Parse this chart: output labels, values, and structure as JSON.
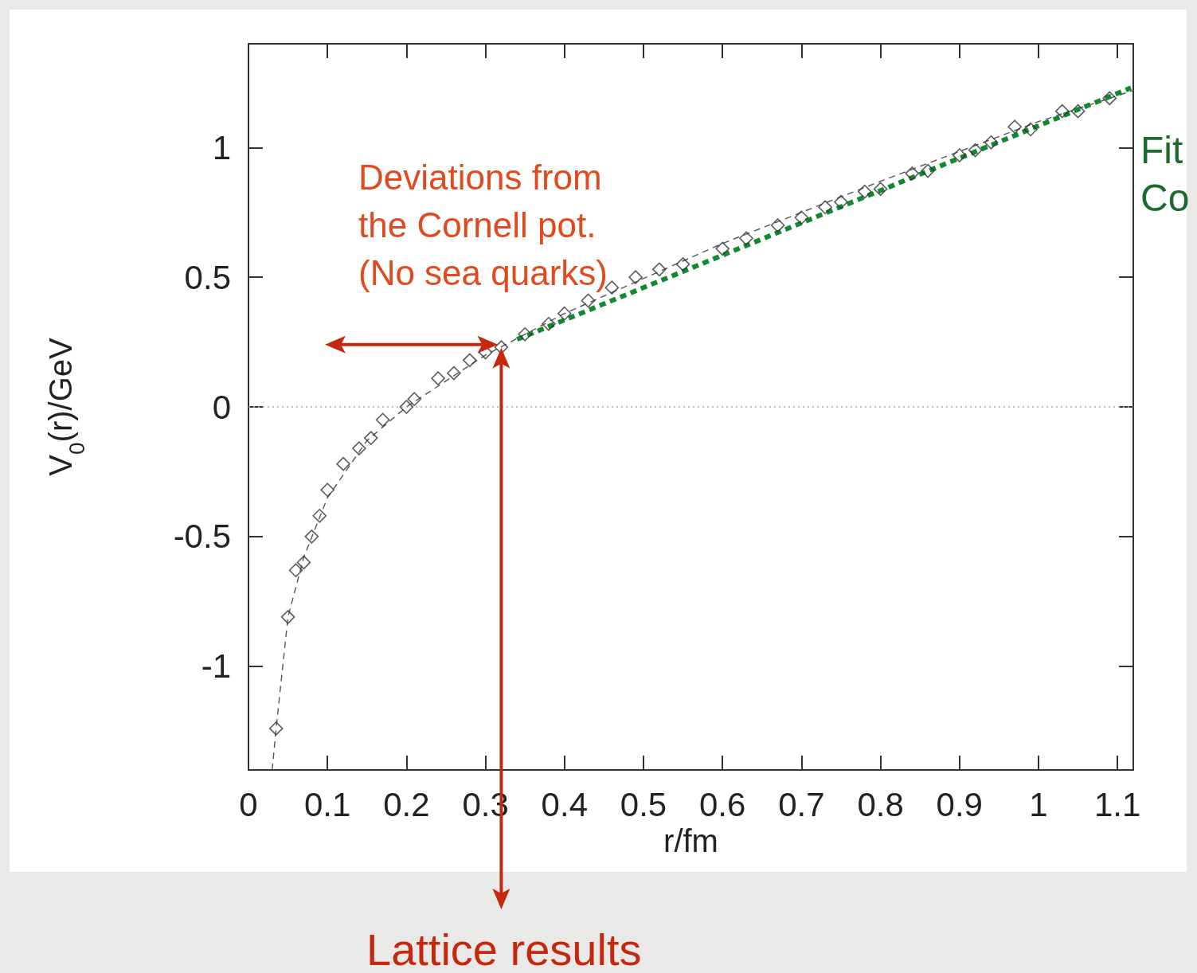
{
  "chart_data": {
    "type": "scatter",
    "xlabel": "r/fm",
    "ylabel": "V$_{0}$(r)/GeV",
    "xlim": [
      0,
      1.12
    ],
    "ylim": [
      -1.4,
      1.4
    ],
    "xticks": [
      0,
      0.1,
      0.2,
      0.3,
      0.4,
      0.5,
      0.6,
      0.7,
      0.8,
      0.9,
      1,
      1.1
    ],
    "yticks": [
      -1,
      -0.5,
      0,
      0.5,
      1
    ],
    "grid": false,
    "marker": "diamond",
    "series": [
      {
        "color": "#333333",
        "x": [
          0.035,
          0.05,
          0.06,
          0.07,
          0.08,
          0.09,
          0.1,
          0.12,
          0.14,
          0.155,
          0.17,
          0.2,
          0.21,
          0.24,
          0.26,
          0.28,
          0.3,
          0.32,
          0.35,
          0.38,
          0.4,
          0.43,
          0.46,
          0.49,
          0.52,
          0.55,
          0.6,
          0.63,
          0.67,
          0.7,
          0.73,
          0.75,
          0.78,
          0.8,
          0.84,
          0.86,
          0.9,
          0.92,
          0.94,
          0.97,
          0.99,
          1.03,
          1.05,
          1.09
        ],
        "values": [
          -1.24,
          -0.81,
          -0.63,
          -0.6,
          -0.5,
          -0.42,
          -0.32,
          -0.22,
          -0.16,
          -0.12,
          -0.05,
          0.0,
          0.03,
          0.11,
          0.13,
          0.18,
          0.21,
          0.23,
          0.28,
          0.32,
          0.36,
          0.41,
          0.46,
          0.5,
          0.53,
          0.55,
          0.61,
          0.65,
          0.7,
          0.73,
          0.77,
          0.79,
          0.83,
          0.84,
          0.9,
          0.91,
          0.97,
          0.99,
          1.02,
          1.08,
          1.07,
          1.14,
          1.14,
          1.19
        ]
      },
      {
        "type": "line",
        "color": "#555555",
        "line_style": "dashed",
        "marker": "none",
        "x": [
          0.03,
          0.035,
          0.05,
          0.07,
          0.1,
          0.15,
          0.2,
          0.3,
          0.4,
          0.6,
          0.8,
          1.0,
          1.12
        ],
        "values": [
          -1.4,
          -1.24,
          -0.81,
          -0.58,
          -0.35,
          -0.13,
          0.0,
          0.2,
          0.36,
          0.63,
          0.87,
          1.1,
          1.22
        ]
      },
      {
        "type": "line",
        "color": "#118a2e",
        "line_style": "dashed",
        "marker": "none",
        "x": [
          0.34,
          1.117
        ],
        "values": [
          0.26,
          1.23
        ]
      }
    ],
    "ref_lines": [
      {
        "axis": "y",
        "value": 0,
        "color": "#aaaaaa",
        "line_style": "dotted"
      }
    ],
    "annotations": [
      {
        "text": "Deviations from\nthe Cornell pot.\n(No sea quarks)",
        "x": 0.32,
        "y": 0.24
      },
      "Lattice results",
      "Fit\nCo"
    ]
  }
}
